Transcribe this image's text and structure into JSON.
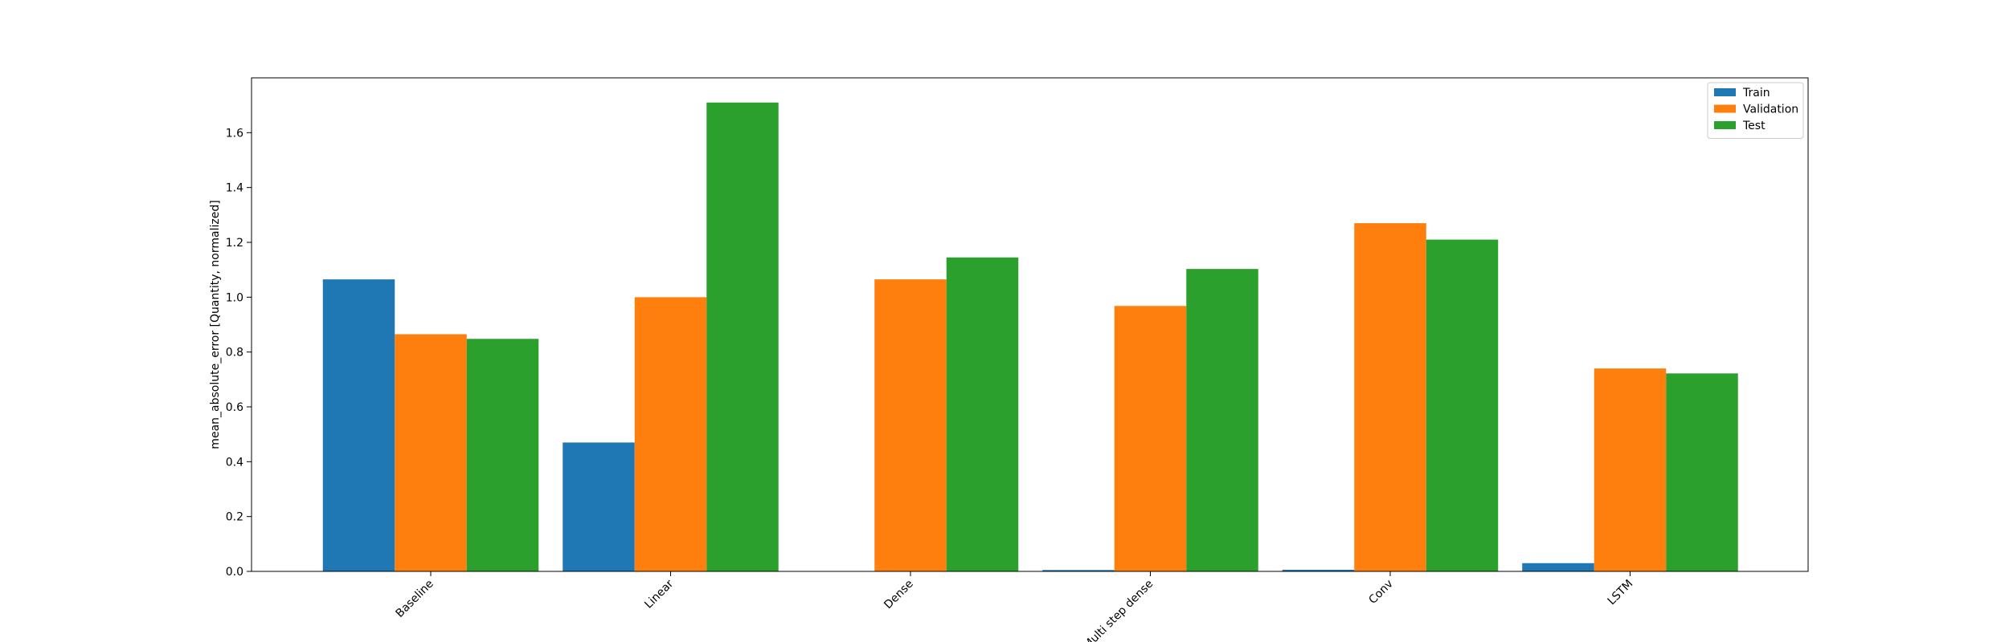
{
  "chart_data": {
    "type": "bar",
    "title": "",
    "xlabel": "",
    "ylabel": "mean_absolute_error [Quantity, normalized]",
    "ylim": [
      0,
      1.8
    ],
    "yticks": [
      "0.0",
      "0.2",
      "0.4",
      "0.6",
      "0.8",
      "1.0",
      "1.2",
      "1.4",
      "1.6"
    ],
    "categories": [
      "Baseline",
      "Linear",
      "Dense",
      "Multi step dense",
      "Conv",
      "LSTM"
    ],
    "series": [
      {
        "name": "Train",
        "color": "#1f77b4",
        "values": [
          1.065,
          0.47,
          0.0,
          0.005,
          0.006,
          0.03
        ]
      },
      {
        "name": "Validation",
        "color": "#ff7f0e",
        "values": [
          0.865,
          1.0,
          1.065,
          0.968,
          1.27,
          0.74
        ]
      },
      {
        "name": "Test",
        "color": "#2ca02c",
        "values": [
          0.848,
          1.71,
          1.145,
          1.103,
          1.21,
          0.722
        ]
      }
    ],
    "grid": false,
    "legend_position": "top-right",
    "xtick_rotation": 45
  }
}
